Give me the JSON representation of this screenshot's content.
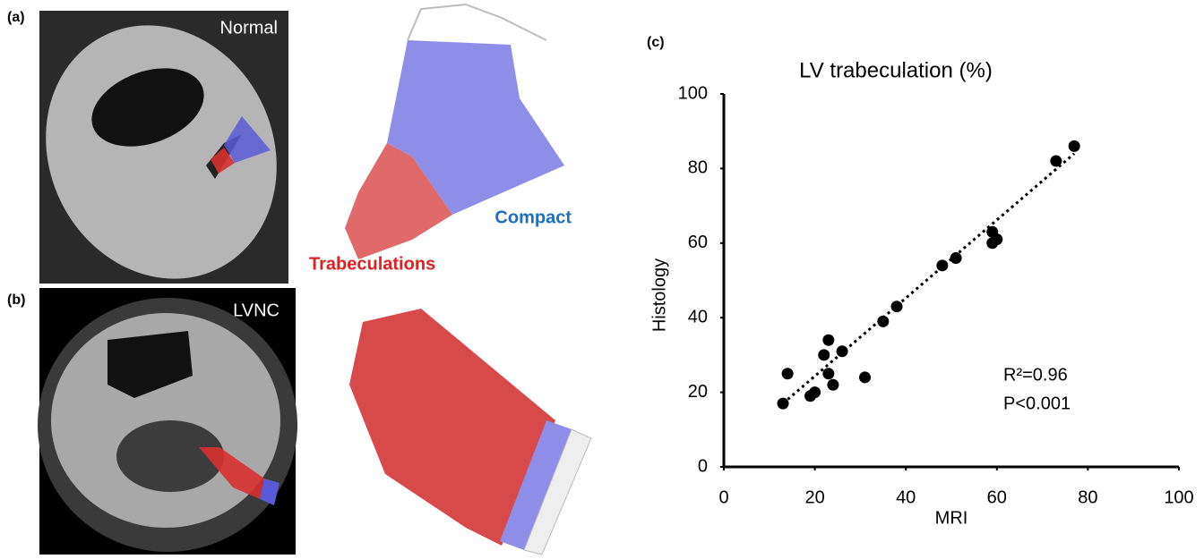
{
  "panel_a": {
    "label": "(a)",
    "title": "Normal",
    "compact": "Compact",
    "trabeculations": "Trabeculations"
  },
  "panel_b": {
    "label": "(b)",
    "title": "LVNC"
  },
  "chart_data": {
    "type": "scatter",
    "panel_label": "(c)",
    "title": "LV trabeculation (%)",
    "x_label": "MRI",
    "y_label": "Histology",
    "x": [
      13,
      14,
      19,
      20,
      22,
      23,
      23,
      24,
      26,
      31,
      35,
      38,
      48,
      51,
      59,
      59,
      60,
      73,
      77
    ],
    "values": [
      17,
      25,
      19,
      20,
      30,
      34,
      25,
      22,
      31,
      24,
      39,
      43,
      54,
      56,
      63,
      60,
      61,
      82,
      86
    ],
    "color": "#000000",
    "trendline": {
      "x": [
        13,
        77
      ],
      "y": [
        17,
        84
      ]
    },
    "annotations": [
      "R²=0.96",
      "P<0.001"
    ],
    "xlim": [
      0,
      100
    ],
    "xticks": [
      0,
      20,
      40,
      60,
      80,
      100
    ],
    "ylim": [
      0,
      100
    ],
    "yticks": [
      0,
      20,
      40,
      60,
      80,
      100
    ],
    "grid": false
  }
}
